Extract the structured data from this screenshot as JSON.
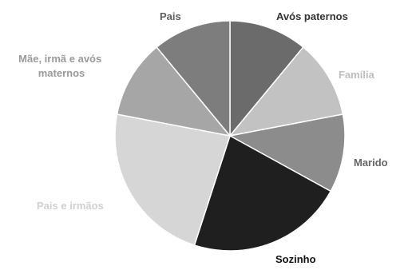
{
  "chart_data": {
    "type": "pie",
    "title": "",
    "slices": [
      {
        "label": "Avós paternos",
        "value": 11,
        "color": "#6b6b6b",
        "label_color": "#333333"
      },
      {
        "label": "Família",
        "value": 11,
        "color": "#c2c2c2",
        "label_color": "#bdbdbd"
      },
      {
        "label": "Marido",
        "value": 11,
        "color": "#8c8c8c",
        "label_color": "#666666"
      },
      {
        "label": "Sozinho",
        "value": 22,
        "color": "#1f1f1f",
        "label_color": "#111111"
      },
      {
        "label": "Pais e irmãos",
        "value": 23,
        "color": "#d6d6d6",
        "label_color": "#d0d0d0"
      },
      {
        "label": "Mãe, irmã e avós maternos",
        "value": 11,
        "color": "#a6a6a6",
        "label_color": "#9a9a9a"
      },
      {
        "label": "Pais",
        "value": 11,
        "color": "#7d7d7d",
        "label_color": "#5e5e5e"
      }
    ],
    "start_angle_deg": 0,
    "direction": "clockwise",
    "legend": "none"
  }
}
